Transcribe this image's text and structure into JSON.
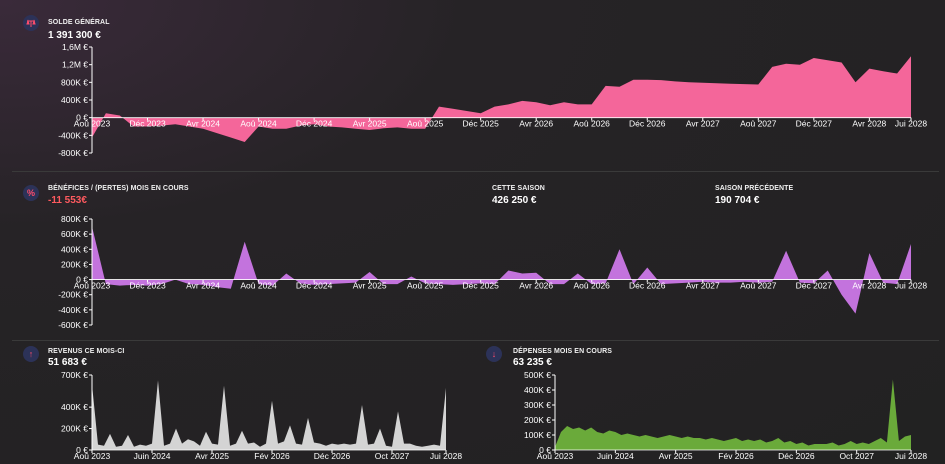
{
  "balance": {
    "label": "SOLDE GÉNÉRAL",
    "value": "1 391 300 €",
    "icon": "balance-scale-icon"
  },
  "profit": {
    "label": "BÉNÉFICES / (PERTES) MOIS EN COURS",
    "value": "-11 553€",
    "season_label": "CETTE SAISON",
    "season_value": "426 250 €",
    "prev_label": "SAISON PRÉCÉDENTE",
    "prev_value": "190 704 €",
    "icon": "percent-icon"
  },
  "revenue": {
    "label": "REVENUS CE MOIS-CI",
    "value": "51 683 €",
    "icon": "arrow-up-icon"
  },
  "expenses": {
    "label": "DÉPENSES MOIS EN COURS",
    "value": "63 235 €",
    "icon": "arrow-down-icon"
  },
  "colors": {
    "balance": "#f4669a",
    "profit": "#c373dd",
    "revenue": "#d4d4d4",
    "expenses": "#6aaa3a",
    "axis": "#ffffff"
  },
  "chart_data": [
    {
      "type": "area",
      "name": "balance",
      "xlim": [
        0,
        60
      ],
      "ylim": [
        -800000,
        1600000
      ],
      "y_ticks": [
        1600000,
        1200000,
        800000,
        400000,
        0,
        -400000,
        -800000
      ],
      "y_tick_labels": [
        "1,6M €",
        "1,2M €",
        "800K €",
        "400K €",
        "0 €",
        "-400K €",
        "-800K €"
      ],
      "x_ticks": [
        0,
        4,
        8,
        12,
        16,
        20,
        24,
        28,
        32,
        36,
        40,
        44,
        48,
        52,
        56,
        59
      ],
      "x_tick_labels": [
        "Aoû 2023",
        "Déc 2023",
        "Avr 2024",
        "Aoû 2024",
        "Déc 2024",
        "Avr 2025",
        "Aoû 2025",
        "Déc 2025",
        "Avr 2026",
        "Aoû 2026",
        "Déc 2026",
        "Avr 2027",
        "Aoû 2027",
        "Déc 2027",
        "Avr 2028",
        "Jui 2028"
      ],
      "x": [
        0,
        1,
        2,
        3,
        4,
        5,
        6,
        7,
        8,
        9,
        10,
        11,
        12,
        13,
        14,
        15,
        16,
        17,
        18,
        19,
        20,
        21,
        22,
        23,
        24,
        25,
        26,
        27,
        28,
        29,
        30,
        31,
        32,
        33,
        34,
        35,
        36,
        37,
        38,
        39,
        40,
        41,
        42,
        43,
        44,
        45,
        46,
        47,
        48,
        49,
        50,
        51,
        52,
        53,
        54,
        55,
        56,
        57,
        58,
        59
      ],
      "y": [
        -450000,
        100000,
        50000,
        -200000,
        -200000,
        -180000,
        -150000,
        -200000,
        -250000,
        -350000,
        -450000,
        -550000,
        -200000,
        -250000,
        -250000,
        -180000,
        -150000,
        -200000,
        -220000,
        -250000,
        -280000,
        -240000,
        -220000,
        -250000,
        -250000,
        250000,
        200000,
        150000,
        100000,
        250000,
        300000,
        380000,
        350000,
        280000,
        350000,
        300000,
        300000,
        720000,
        700000,
        860000,
        860000,
        850000,
        820000,
        800000,
        790000,
        780000,
        770000,
        760000,
        750000,
        1150000,
        1220000,
        1200000,
        1350000,
        1300000,
        1250000,
        800000,
        1110000,
        1050000,
        1000000,
        1391300
      ]
    },
    {
      "type": "area",
      "name": "profit",
      "xlim": [
        0,
        60
      ],
      "ylim": [
        -600000,
        800000
      ],
      "y_ticks": [
        800000,
        600000,
        400000,
        200000,
        0,
        -200000,
        -400000,
        -600000
      ],
      "y_tick_labels": [
        "800K €",
        "600K €",
        "400K €",
        "200K €",
        "0 €",
        "-200K €",
        "-400K €",
        "-600K €"
      ],
      "x_ticks": [
        0,
        4,
        8,
        12,
        16,
        20,
        24,
        28,
        32,
        36,
        40,
        44,
        48,
        52,
        56,
        59
      ],
      "x_tick_labels": [
        "Aoû 2023",
        "Déc 2023",
        "Avr 2024",
        "Aoû 2024",
        "Déc 2024",
        "Avr 2025",
        "Aoû 2025",
        "Déc 2025",
        "Avr 2026",
        "Aoû 2026",
        "Déc 2026",
        "Avr 2027",
        "Aoû 2027",
        "Déc 2027",
        "Avr 2028",
        "Jui 2028"
      ],
      "x": [
        0,
        1,
        2,
        3,
        4,
        5,
        6,
        7,
        8,
        9,
        10,
        11,
        12,
        13,
        14,
        15,
        16,
        17,
        18,
        19,
        20,
        21,
        22,
        23,
        24,
        25,
        26,
        27,
        28,
        29,
        30,
        31,
        32,
        33,
        34,
        35,
        36,
        37,
        38,
        39,
        40,
        41,
        42,
        43,
        44,
        45,
        46,
        47,
        48,
        49,
        50,
        51,
        52,
        53,
        54,
        55,
        56,
        57,
        58,
        59
      ],
      "y": [
        700000,
        -60000,
        -80000,
        -70000,
        -80000,
        -60000,
        0,
        -60000,
        -70000,
        -100000,
        -120000,
        500000,
        -60000,
        -80000,
        80000,
        -50000,
        -70000,
        -60000,
        -50000,
        -40000,
        100000,
        -60000,
        -60000,
        40000,
        -50000,
        -60000,
        -70000,
        -60000,
        -50000,
        -60000,
        120000,
        80000,
        90000,
        -60000,
        -60000,
        80000,
        -60000,
        -50000,
        400000,
        -60000,
        160000,
        -60000,
        -50000,
        -40000,
        -30000,
        -40000,
        -40000,
        -30000,
        -40000,
        -30000,
        380000,
        -40000,
        -50000,
        120000,
        -200000,
        -450000,
        350000,
        -40000,
        -60000,
        470000
      ]
    },
    {
      "type": "area",
      "name": "revenue",
      "xlim": [
        0,
        60
      ],
      "ylim": [
        0,
        700000
      ],
      "y_ticks": [
        700000,
        400000,
        200000,
        0
      ],
      "y_tick_labels": [
        "700K €",
        "400K €",
        "200K €",
        "0 €"
      ],
      "x_ticks": [
        0,
        10,
        20,
        30,
        40,
        50,
        59
      ],
      "x_tick_labels": [
        "Aoû 2023",
        "Juin 2024",
        "Avr 2025",
        "Fév 2026",
        "Déc 2026",
        "Oct 2027",
        "Jui 2028"
      ],
      "x": [
        0,
        1,
        2,
        3,
        4,
        5,
        6,
        7,
        8,
        9,
        10,
        11,
        12,
        13,
        14,
        15,
        16,
        17,
        18,
        19,
        20,
        21,
        22,
        23,
        24,
        25,
        26,
        27,
        28,
        29,
        30,
        31,
        32,
        33,
        34,
        35,
        36,
        37,
        38,
        39,
        40,
        41,
        42,
        43,
        44,
        45,
        46,
        47,
        48,
        49,
        50,
        51,
        52,
        53,
        54,
        55,
        56,
        57,
        58,
        59
      ],
      "y": [
        610000,
        50000,
        40000,
        150000,
        30000,
        40000,
        140000,
        30000,
        50000,
        40000,
        60000,
        650000,
        40000,
        60000,
        200000,
        60000,
        100000,
        80000,
        40000,
        170000,
        60000,
        50000,
        600000,
        40000,
        60000,
        180000,
        60000,
        70000,
        30000,
        60000,
        460000,
        60000,
        80000,
        230000,
        60000,
        50000,
        300000,
        70000,
        60000,
        40000,
        60000,
        50000,
        60000,
        50000,
        60000,
        420000,
        50000,
        60000,
        200000,
        40000,
        30000,
        360000,
        60000,
        60000,
        40000,
        30000,
        40000,
        50000,
        40000,
        580000
      ]
    },
    {
      "type": "area",
      "name": "expenses",
      "xlim": [
        0,
        60
      ],
      "ylim": [
        0,
        500000
      ],
      "y_ticks": [
        500000,
        400000,
        300000,
        200000,
        100000,
        0
      ],
      "y_tick_labels": [
        "500K €",
        "400K €",
        "300K €",
        "200K €",
        "100K €",
        "0 €"
      ],
      "x_ticks": [
        0,
        10,
        20,
        30,
        40,
        50,
        59
      ],
      "x_tick_labels": [
        "Aoû 2023",
        "Juin 2024",
        "Avr 2025",
        "Fév 2026",
        "Déc 2026",
        "Oct 2027",
        "Jui 2028"
      ],
      "x": [
        0,
        1,
        2,
        3,
        4,
        5,
        6,
        7,
        8,
        9,
        10,
        11,
        12,
        13,
        14,
        15,
        16,
        17,
        18,
        19,
        20,
        21,
        22,
        23,
        24,
        25,
        26,
        27,
        28,
        29,
        30,
        31,
        32,
        33,
        34,
        35,
        36,
        37,
        38,
        39,
        40,
        41,
        42,
        43,
        44,
        45,
        46,
        47,
        48,
        49,
        50,
        51,
        52,
        53,
        54,
        55,
        56,
        57,
        58,
        59
      ],
      "y": [
        20000,
        120000,
        160000,
        140000,
        150000,
        130000,
        150000,
        120000,
        110000,
        130000,
        120000,
        100000,
        110000,
        100000,
        90000,
        100000,
        90000,
        80000,
        90000,
        100000,
        90000,
        80000,
        90000,
        80000,
        80000,
        70000,
        80000,
        70000,
        60000,
        70000,
        80000,
        60000,
        70000,
        60000,
        70000,
        50000,
        60000,
        80000,
        50000,
        60000,
        40000,
        50000,
        30000,
        40000,
        40000,
        40000,
        50000,
        30000,
        40000,
        60000,
        40000,
        50000,
        40000,
        60000,
        80000,
        50000,
        470000,
        60000,
        90000,
        100000
      ]
    }
  ]
}
